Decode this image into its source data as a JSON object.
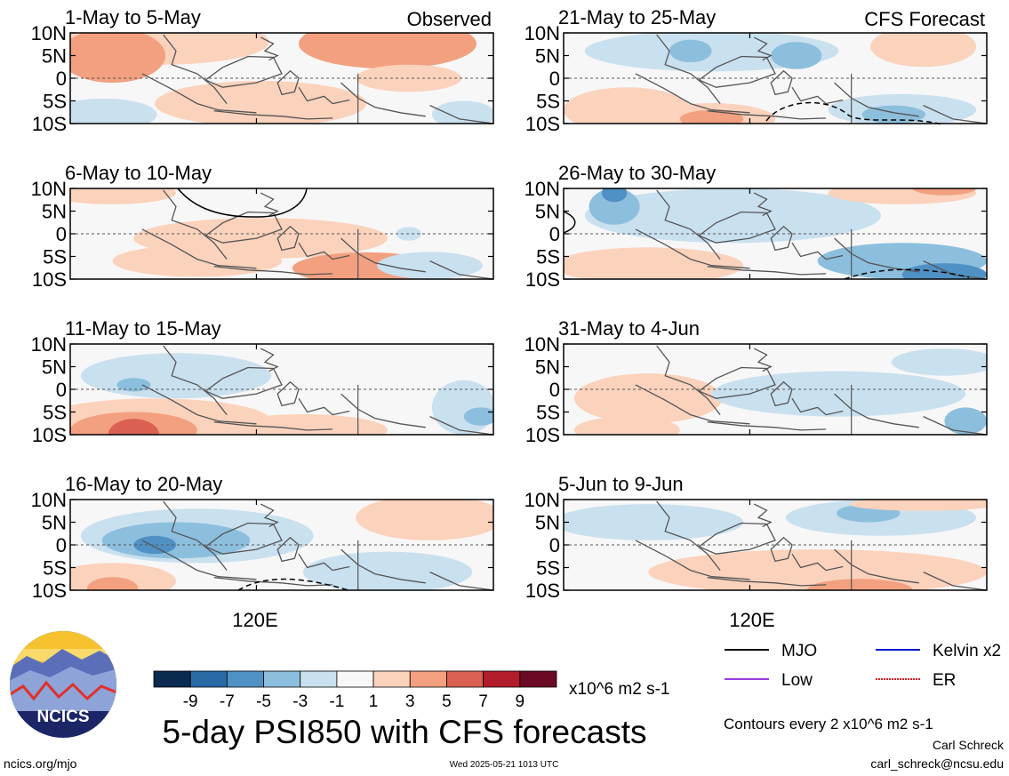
{
  "panels": [
    {
      "title": "1-May to 5-May",
      "tag": "Observed"
    },
    {
      "title": "6-May to 10-May",
      "tag": ""
    },
    {
      "title": "11-May to 15-May",
      "tag": ""
    },
    {
      "title": "16-May to 20-May",
      "tag": ""
    },
    {
      "title": "21-May to 25-May",
      "tag": "CFS Forecast"
    },
    {
      "title": "26-May to 30-May",
      "tag": ""
    },
    {
      "title": "31-May to 4-Jun",
      "tag": ""
    },
    {
      "title": "5-Jun to 9-Jun",
      "tag": ""
    }
  ],
  "lat_labels": [
    "10N",
    "5N",
    "0",
    "5S",
    "10S"
  ],
  "lon_label": "120E",
  "colorbar": {
    "colors": [
      "#0b2a4f",
      "#2a6aa5",
      "#4f91c4",
      "#8cbfdd",
      "#c9e0ef",
      "#f7f7f7",
      "#fbd2bc",
      "#f2a07f",
      "#da6151",
      "#b21c2b",
      "#6b0a24"
    ],
    "labels": [
      "-9",
      "-7",
      "-5",
      "-3",
      "-1",
      "1",
      "3",
      "5",
      "7",
      "9"
    ],
    "units": "x10^6 m2 s-1"
  },
  "main_title": "5-day PSI850 with CFS forecasts",
  "legend": [
    {
      "label": "MJO",
      "color": "#000000",
      "style": "solid"
    },
    {
      "label": "Kelvin x2",
      "color": "#0018cc",
      "style": "solid"
    },
    {
      "label": "Low",
      "color": "#9a3be0",
      "style": "solid"
    },
    {
      "label": "ER",
      "color": "#d42020",
      "style": "dotted"
    }
  ],
  "contours_note": "Contours every 2 x10^6 m2 s-1",
  "author": "Carl Schreck",
  "email": "carl_schreck@ncsu.edu",
  "url": "ncics.org/mjo",
  "timestamp": "Wed 2025-05-21 1013 UTC",
  "logo_text": "NCICS"
}
